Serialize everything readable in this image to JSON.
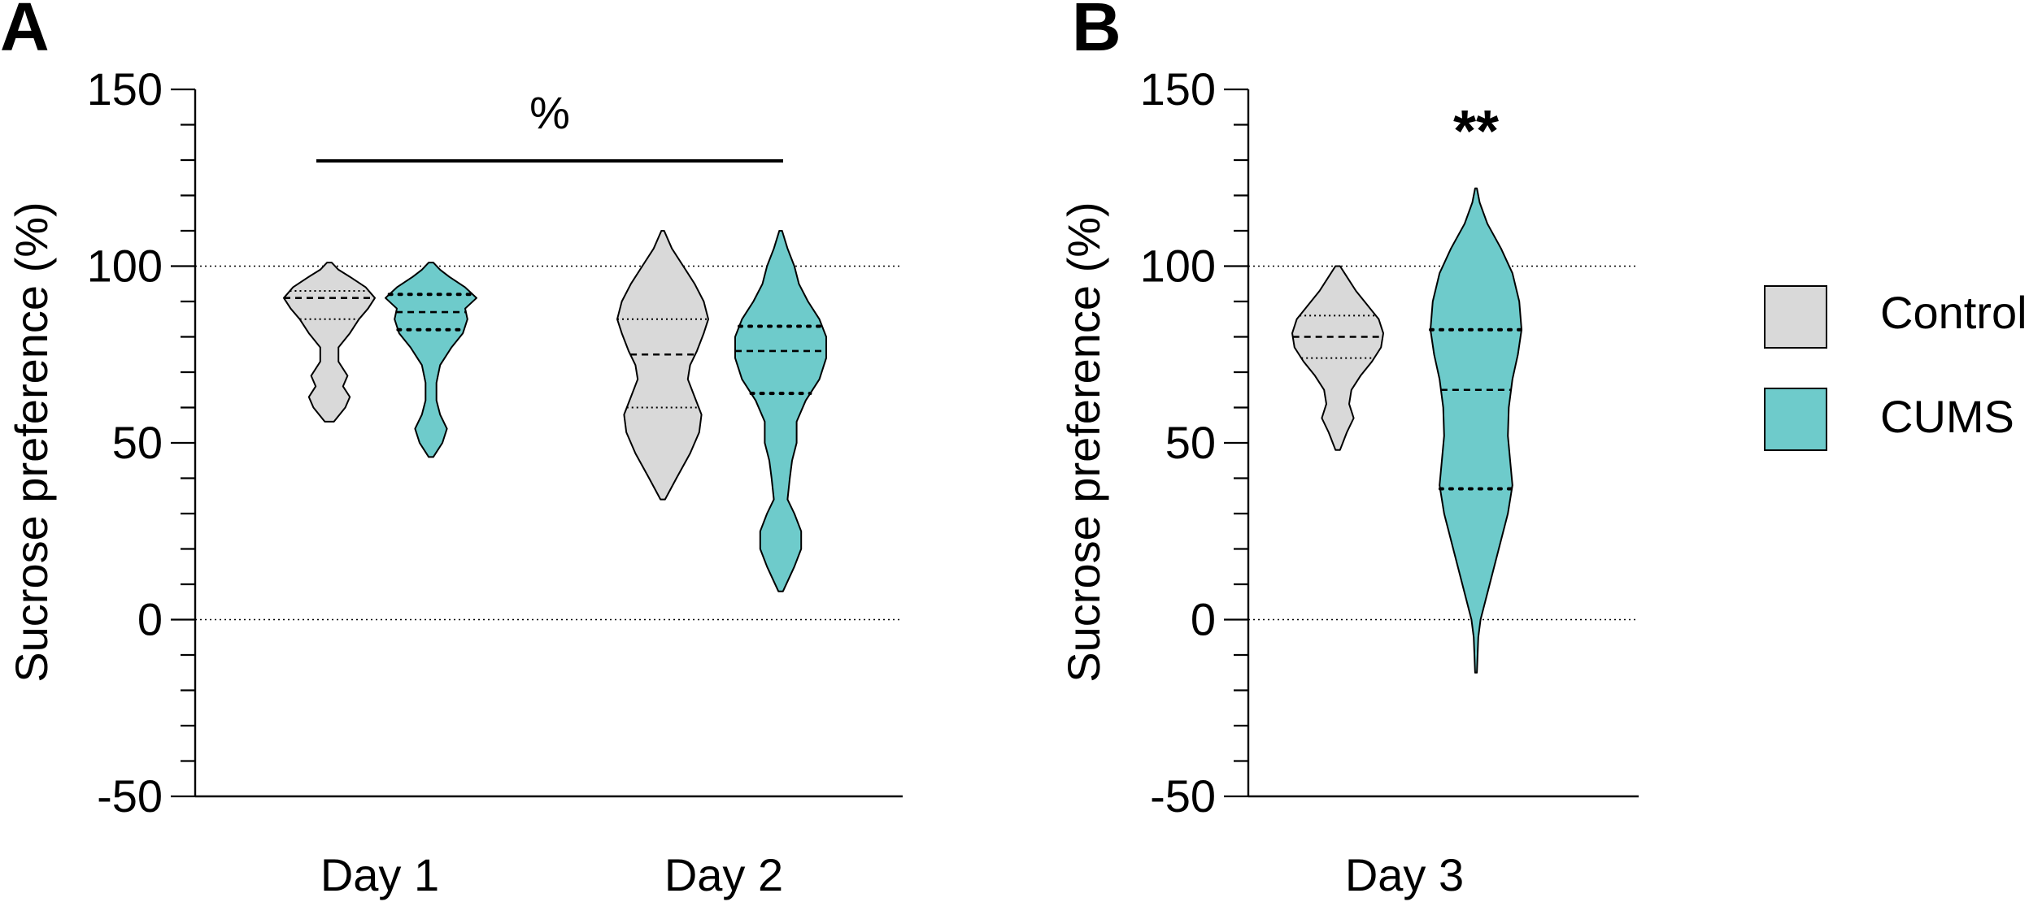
{
  "panels": [
    {
      "letter": "A"
    },
    {
      "letter": "B"
    }
  ],
  "legend": {
    "position": "right",
    "items": [
      {
        "label": "Control",
        "color": "#d9d9d9"
      },
      {
        "label": "CUMS",
        "color": "#6ecbcb"
      }
    ]
  },
  "chart_data": [
    {
      "type": "violin",
      "panel": "A",
      "ylabel": "Sucrose preference (%)",
      "ylim": [
        -50,
        150
      ],
      "yticks": [
        -50,
        0,
        50,
        100,
        150
      ],
      "reference_lines": [
        0,
        100
      ],
      "categories": [
        "Day 1",
        "Day 2"
      ],
      "series": [
        {
          "name": "Control",
          "color": "#d9d9d9",
          "groups": [
            {
              "category": "Day 1",
              "min": 56,
              "max": 101,
              "q1": 85,
              "median": 91,
              "q3": 93,
              "density": [
                [
                  56,
                  0.1
                ],
                [
                  60,
                  0.35
                ],
                [
                  63,
                  0.45
                ],
                [
                  66,
                  0.3
                ],
                [
                  69,
                  0.4
                ],
                [
                  73,
                  0.2
                ],
                [
                  77,
                  0.2
                ],
                [
                  81,
                  0.45
                ],
                [
                  85,
                  0.65
                ],
                [
                  88,
                  0.85
                ],
                [
                  91,
                  1.0
                ],
                [
                  94,
                  0.8
                ],
                [
                  97,
                  0.45
                ],
                [
                  99,
                  0.2
                ],
                [
                  101,
                  0.05
                ]
              ]
            },
            {
              "category": "Day 2",
              "min": 34,
              "max": 110,
              "q1": 60,
              "median": 75,
              "q3": 85,
              "density": [
                [
                  34,
                  0.05
                ],
                [
                  40,
                  0.3
                ],
                [
                  47,
                  0.6
                ],
                [
                  53,
                  0.8
                ],
                [
                  58,
                  0.85
                ],
                [
                  63,
                  0.7
                ],
                [
                  68,
                  0.55
                ],
                [
                  72,
                  0.6
                ],
                [
                  76,
                  0.75
                ],
                [
                  81,
                  0.9
                ],
                [
                  85,
                  1.0
                ],
                [
                  90,
                  0.9
                ],
                [
                  95,
                  0.7
                ],
                [
                  100,
                  0.45
                ],
                [
                  105,
                  0.2
                ],
                [
                  110,
                  0.03
                ]
              ]
            }
          ]
        },
        {
          "name": "CUMS",
          "color": "#6ecbcb",
          "groups": [
            {
              "category": "Day 1",
              "min": 46,
              "max": 101,
              "q1": 82,
              "median": 87,
              "q3": 92,
              "density": [
                [
                  46,
                  0.05
                ],
                [
                  50,
                  0.25
                ],
                [
                  54,
                  0.35
                ],
                [
                  58,
                  0.2
                ],
                [
                  62,
                  0.12
                ],
                [
                  67,
                  0.12
                ],
                [
                  72,
                  0.2
                ],
                [
                  77,
                  0.45
                ],
                [
                  81,
                  0.7
                ],
                [
                  85,
                  0.8
                ],
                [
                  88,
                  0.75
                ],
                [
                  91,
                  1.0
                ],
                [
                  94,
                  0.75
                ],
                [
                  97,
                  0.4
                ],
                [
                  99,
                  0.2
                ],
                [
                  101,
                  0.05
                ]
              ]
            },
            {
              "category": "Day 2",
              "min": 8,
              "max": 110,
              "q1": 64,
              "median": 76,
              "q3": 83,
              "density": [
                [
                  8,
                  0.05
                ],
                [
                  15,
                  0.3
                ],
                [
                  20,
                  0.45
                ],
                [
                  25,
                  0.45
                ],
                [
                  30,
                  0.3
                ],
                [
                  34,
                  0.15
                ],
                [
                  40,
                  0.2
                ],
                [
                  45,
                  0.25
                ],
                [
                  50,
                  0.35
                ],
                [
                  56,
                  0.35
                ],
                [
                  62,
                  0.55
                ],
                [
                  68,
                  0.85
                ],
                [
                  74,
                  1.0
                ],
                [
                  80,
                  1.0
                ],
                [
                  85,
                  0.85
                ],
                [
                  90,
                  0.6
                ],
                [
                  95,
                  0.4
                ],
                [
                  100,
                  0.3
                ],
                [
                  105,
                  0.15
                ],
                [
                  110,
                  0.03
                ]
              ]
            }
          ]
        }
      ],
      "annotations": [
        {
          "text": "%",
          "bracket": [
            "Day 1",
            "Day 2"
          ]
        }
      ]
    },
    {
      "type": "violin",
      "panel": "B",
      "ylabel": "Sucrose preference (%)",
      "ylim": [
        -50,
        150
      ],
      "yticks": [
        -50,
        0,
        50,
        100,
        150
      ],
      "reference_lines": [
        0,
        100
      ],
      "categories": [
        "Day 3"
      ],
      "series": [
        {
          "name": "Control",
          "color": "#d9d9d9",
          "groups": [
            {
              "category": "Day 3",
              "min": 48,
              "max": 100,
              "q1": 74,
              "median": 80,
              "q3": 86,
              "density": [
                [
                  48,
                  0.05
                ],
                [
                  53,
                  0.2
                ],
                [
                  57,
                  0.35
                ],
                [
                  61,
                  0.25
                ],
                [
                  65,
                  0.3
                ],
                [
                  69,
                  0.5
                ],
                [
                  73,
                  0.75
                ],
                [
                  77,
                  0.95
                ],
                [
                  81,
                  1.0
                ],
                [
                  85,
                  0.9
                ],
                [
                  89,
                  0.65
                ],
                [
                  93,
                  0.4
                ],
                [
                  97,
                  0.2
                ],
                [
                  100,
                  0.05
                ]
              ]
            }
          ]
        },
        {
          "name": "CUMS",
          "color": "#6ecbcb",
          "groups": [
            {
              "category": "Day 3",
              "min": -15,
              "max": 122,
              "q1": 37,
              "median": 65,
              "q3": 82,
              "density": [
                [
                  -15,
                  0.02
                ],
                [
                  -5,
                  0.05
                ],
                [
                  0,
                  0.1
                ],
                [
                  10,
                  0.3
                ],
                [
                  20,
                  0.5
                ],
                [
                  30,
                  0.7
                ],
                [
                  38,
                  0.8
                ],
                [
                  45,
                  0.75
                ],
                [
                  52,
                  0.7
                ],
                [
                  60,
                  0.72
                ],
                [
                  68,
                  0.8
                ],
                [
                  75,
                  0.92
                ],
                [
                  82,
                  1.0
                ],
                [
                  90,
                  0.95
                ],
                [
                  98,
                  0.8
                ],
                [
                  105,
                  0.55
                ],
                [
                  112,
                  0.25
                ],
                [
                  118,
                  0.08
                ],
                [
                  122,
                  0.02
                ]
              ]
            }
          ]
        }
      ],
      "annotations": [
        {
          "text": "**",
          "category": "Day 3",
          "series": "CUMS"
        }
      ]
    }
  ]
}
